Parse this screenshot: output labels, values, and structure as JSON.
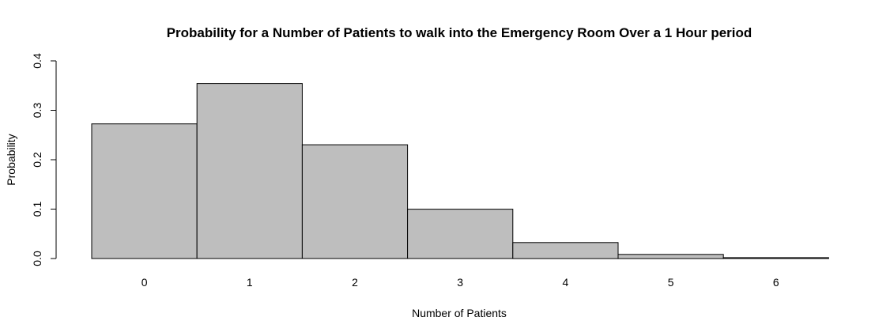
{
  "chart_data": {
    "type": "bar",
    "title": "Probability for a Number of Patients to walk into the Emergency Room Over a 1 Hour period",
    "xlabel": "Number of Patients",
    "ylabel": "Probability",
    "categories": [
      "0",
      "1",
      "2",
      "3",
      "4",
      "5",
      "6"
    ],
    "values": [
      0.2725,
      0.3543,
      0.2303,
      0.0998,
      0.0324,
      0.0084,
      0.0018
    ],
    "ylim": [
      0,
      0.4
    ],
    "yticks": [
      "0.0",
      "0.1",
      "0.2",
      "0.3",
      "0.4"
    ],
    "bar_color": "#bebebe",
    "grid": false,
    "legend": "none"
  }
}
